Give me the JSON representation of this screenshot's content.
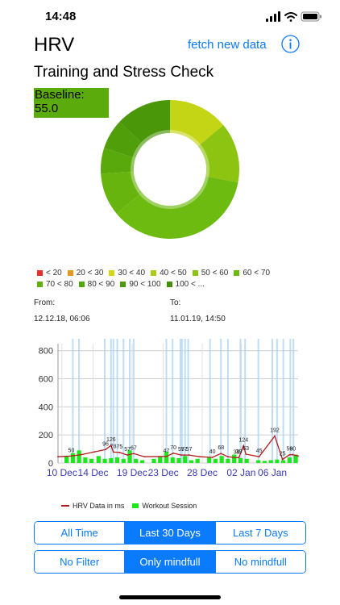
{
  "status": {
    "time": "14:48"
  },
  "nav": {
    "title": "HRV",
    "fetch_label": "fetch new data"
  },
  "subtitle": "Training and Stress Check",
  "baseline": {
    "label": "Baseline:",
    "value": "55.0"
  },
  "donut": {
    "slices": [
      {
        "value": 14,
        "color": "#c4d516"
      },
      {
        "value": 14,
        "color": "#8dc412"
      },
      {
        "value": 36,
        "color": "#6dbb10"
      },
      {
        "value": 10,
        "color": "#68b40f"
      },
      {
        "value": 6,
        "color": "#5aa90c"
      },
      {
        "value": 7,
        "color": "#4f9e0a"
      },
      {
        "value": 13,
        "color": "#4a9709"
      }
    ]
  },
  "legend": [
    {
      "label": "< 20",
      "color": "#e0322a"
    },
    {
      "label": "20 < 30",
      "color": "#e39a23"
    },
    {
      "label": "30 < 40",
      "color": "#d7d41c"
    },
    {
      "label": "40 < 50",
      "color": "#a8cc18"
    },
    {
      "label": "50 < 60",
      "color": "#8cc412"
    },
    {
      "label": "60 < 70",
      "color": "#6dbb10"
    },
    {
      "label": "70 < 80",
      "color": "#5fb00e"
    },
    {
      "label": "80 < 90",
      "color": "#55a50c"
    },
    {
      "label": "90 < 100",
      "color": "#4c9b0a"
    },
    {
      "label": "100 < ...",
      "color": "#428f08"
    }
  ],
  "range": {
    "from_label": "From:",
    "from_value": "12.12.18, 06:06",
    "to_label": "To:",
    "to_value": "11.01.19, 14:50"
  },
  "chart_data": {
    "type": "line",
    "title": "",
    "xlabel": "",
    "ylabel": "",
    "ylim": [
      0,
      850
    ],
    "xlim": [
      9.5,
      40.3
    ],
    "y_ticks": [
      "800",
      "600",
      "400",
      "200",
      "0"
    ],
    "y_tick_values": [
      800,
      600,
      400,
      200,
      0
    ],
    "x_ticks": [
      "10 Dec",
      "14 Dec",
      "19 Dec",
      "23 Dec",
      "28 Dec",
      "02 Jan",
      "06 Jan"
    ],
    "x_tick_values": [
      10,
      14,
      19,
      23,
      28,
      33,
      37
    ],
    "grid": true,
    "legend_position": "bottom",
    "series": [
      {
        "name": "HRV Data in ms",
        "color": "#b51d1d",
        "points": [
          {
            "x": 9.5,
            "y": 45
          },
          {
            "x": 11.2,
            "y": 50
          },
          {
            "x": 12.5,
            "y": 60
          },
          {
            "x": 14.2,
            "y": 80
          },
          {
            "x": 15.6,
            "y": 96
          },
          {
            "x": 16.3,
            "y": 126
          },
          {
            "x": 16.6,
            "y": 78
          },
          {
            "x": 17.4,
            "y": 75
          },
          {
            "x": 18.4,
            "y": 57
          },
          {
            "x": 19.2,
            "y": 67
          },
          {
            "x": 20.6,
            "y": 45
          },
          {
            "x": 23.4,
            "y": 47
          },
          {
            "x": 24.3,
            "y": 70
          },
          {
            "x": 25.3,
            "y": 57
          },
          {
            "x": 25.7,
            "y": 57
          },
          {
            "x": 26.3,
            "y": 57
          },
          {
            "x": 27.7,
            "y": 45
          },
          {
            "x": 29.3,
            "y": 40
          },
          {
            "x": 30.4,
            "y": 68
          },
          {
            "x": 31.3,
            "y": 45
          },
          {
            "x": 32.4,
            "y": 38
          },
          {
            "x": 32.7,
            "y": 39
          },
          {
            "x": 33.3,
            "y": 124
          },
          {
            "x": 33.6,
            "y": 63
          },
          {
            "x": 35.3,
            "y": 45
          },
          {
            "x": 37.3,
            "y": 192
          },
          {
            "x": 38.3,
            "y": 25
          },
          {
            "x": 39.2,
            "y": 59
          },
          {
            "x": 39.6,
            "y": 60
          },
          {
            "x": 40.3,
            "y": 50
          }
        ]
      },
      {
        "name": "Workout Session",
        "color": "#1de81d",
        "type": "bar",
        "points": [
          {
            "x": 10.6,
            "y": 50
          },
          {
            "x": 11.4,
            "y": 70
          },
          {
            "x": 12.2,
            "y": 90
          },
          {
            "x": 13.0,
            "y": 40
          },
          {
            "x": 13.8,
            "y": 30
          },
          {
            "x": 14.7,
            "y": 50
          },
          {
            "x": 15.5,
            "y": 30
          },
          {
            "x": 16.3,
            "y": 35
          },
          {
            "x": 17.1,
            "y": 40
          },
          {
            "x": 17.9,
            "y": 30
          },
          {
            "x": 18.7,
            "y": 90
          },
          {
            "x": 19.5,
            "y": 30
          },
          {
            "x": 20.3,
            "y": 20
          },
          {
            "x": 21.8,
            "y": 30
          },
          {
            "x": 22.6,
            "y": 45
          },
          {
            "x": 23.4,
            "y": 80
          },
          {
            "x": 24.2,
            "y": 40
          },
          {
            "x": 25.0,
            "y": 35
          },
          {
            "x": 25.8,
            "y": 50
          },
          {
            "x": 26.6,
            "y": 20
          },
          {
            "x": 27.4,
            "y": 30
          },
          {
            "x": 28.9,
            "y": 40
          },
          {
            "x": 29.7,
            "y": 30
          },
          {
            "x": 30.5,
            "y": 50
          },
          {
            "x": 31.3,
            "y": 30
          },
          {
            "x": 32.1,
            "y": 60
          },
          {
            "x": 32.9,
            "y": 35
          },
          {
            "x": 33.7,
            "y": 30
          },
          {
            "x": 35.2,
            "y": 20
          },
          {
            "x": 36.0,
            "y": 15
          },
          {
            "x": 36.8,
            "y": 20
          },
          {
            "x": 37.6,
            "y": 25
          },
          {
            "x": 38.4,
            "y": 20
          },
          {
            "x": 39.2,
            "y": 40
          },
          {
            "x": 40.0,
            "y": 60
          }
        ]
      }
    ],
    "annotations": [
      {
        "x": 11.2,
        "y": 50,
        "text": "50"
      },
      {
        "x": 15.6,
        "y": 96,
        "text": "96"
      },
      {
        "x": 16.3,
        "y": 126,
        "text": "126"
      },
      {
        "x": 16.6,
        "y": 78,
        "text": "78"
      },
      {
        "x": 17.4,
        "y": 75,
        "text": "75"
      },
      {
        "x": 18.4,
        "y": 57,
        "text": "57"
      },
      {
        "x": 19.2,
        "y": 67,
        "text": "67"
      },
      {
        "x": 23.4,
        "y": 47,
        "text": "47"
      },
      {
        "x": 24.3,
        "y": 70,
        "text": "70"
      },
      {
        "x": 25.3,
        "y": 57,
        "text": "57"
      },
      {
        "x": 25.7,
        "y": 57,
        "text": "57"
      },
      {
        "x": 26.3,
        "y": 57,
        "text": "57"
      },
      {
        "x": 29.3,
        "y": 40,
        "text": "40"
      },
      {
        "x": 30.4,
        "y": 68,
        "text": "68"
      },
      {
        "x": 32.4,
        "y": 38,
        "text": "38"
      },
      {
        "x": 32.7,
        "y": 39,
        "text": "39"
      },
      {
        "x": 33.3,
        "y": 124,
        "text": "124"
      },
      {
        "x": 33.6,
        "y": 63,
        "text": "63"
      },
      {
        "x": 35.3,
        "y": 45,
        "text": "45"
      },
      {
        "x": 37.3,
        "y": 192,
        "text": "192"
      },
      {
        "x": 38.3,
        "y": 25,
        "text": "25"
      },
      {
        "x": 39.2,
        "y": 59,
        "text": "59"
      },
      {
        "x": 39.6,
        "y": 60,
        "text": "60"
      }
    ],
    "vertical_markers": [
      11.4,
      12.2,
      15.5,
      16.3,
      16.6,
      17.1,
      17.9,
      18.7,
      19.2,
      23.4,
      24.2,
      25.2,
      25.4,
      25.8,
      26.2,
      29.0,
      30.4,
      31.3,
      32.9,
      33.5,
      35.2,
      37.0,
      37.6,
      38.4,
      39.3,
      39.7
    ],
    "vertical_marker_color": "#a9d3f5"
  },
  "filters": {
    "time": [
      {
        "label": "All Time",
        "active": false
      },
      {
        "label": "Last 30 Days",
        "active": true
      },
      {
        "label": "Last 7 Days",
        "active": false
      }
    ],
    "mindful": [
      {
        "label": "No Filter",
        "active": false
      },
      {
        "label": "Only mindfull",
        "active": true
      },
      {
        "label": "No mindfull",
        "active": false
      }
    ]
  }
}
